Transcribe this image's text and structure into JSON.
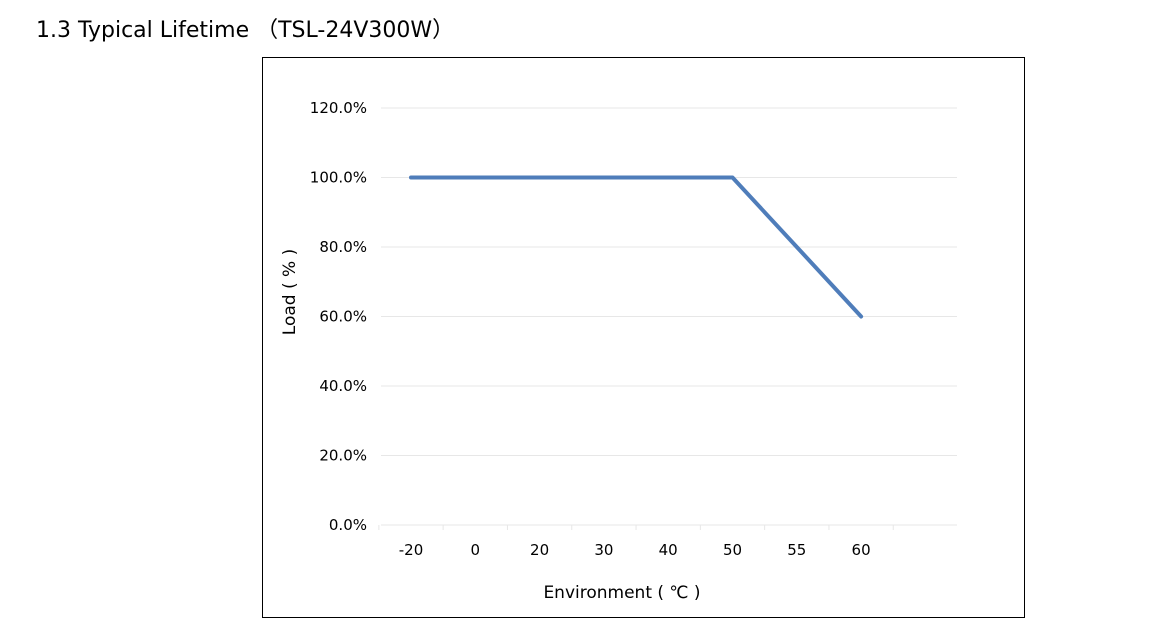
{
  "page": {
    "section_title": "1.3 Typical Lifetime （TSL-24V300W）"
  },
  "chart_data": {
    "type": "line",
    "title": "",
    "xlabel": "Environment ( ℃ )",
    "ylabel": "Load ( % )",
    "categories": [
      "-20",
      "0",
      "20",
      "30",
      "40",
      "50",
      "55",
      "60"
    ],
    "series": [
      {
        "name": "",
        "values": [
          100.0,
          100.0,
          100.0,
          100.0,
          100.0,
          100.0,
          80.0,
          60.0
        ],
        "color": "#4F7DBA"
      }
    ],
    "ylim": [
      0,
      120
    ],
    "yticks": [
      "0.0%",
      "20.0%",
      "40.0%",
      "60.0%",
      "80.0%",
      "100.0%",
      "120.0%"
    ],
    "ytick_values": [
      0,
      20,
      40,
      60,
      80,
      100,
      120
    ],
    "grid": true,
    "gridline_color": "#E7E7E7",
    "legend": "none"
  }
}
